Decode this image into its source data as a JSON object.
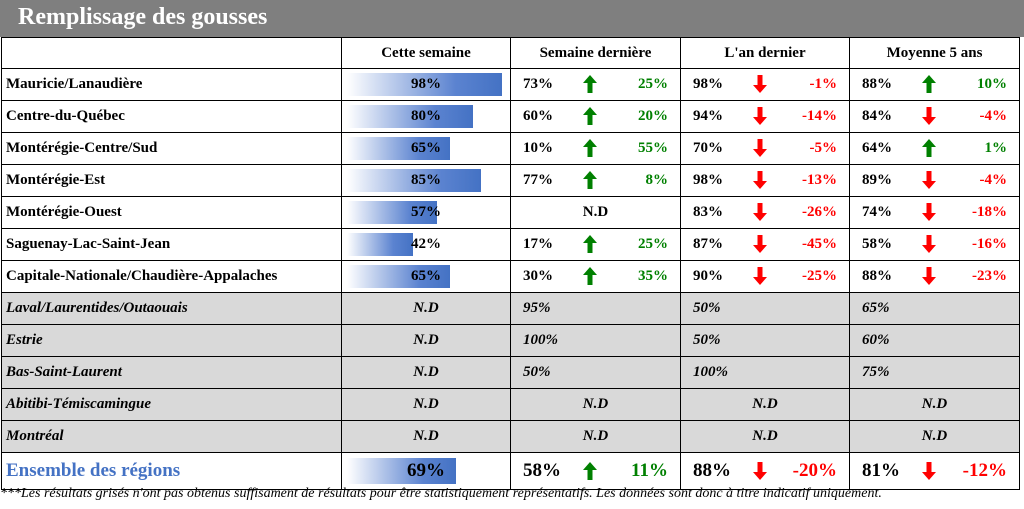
{
  "title": "Remplissage des gousses",
  "headers": [
    "",
    "Cette semaine",
    "Semaine dernière",
    "L'an dernier",
    "Moyenne 5 ans"
  ],
  "colors": {
    "up": "#008000",
    "down": "#ff0000",
    "bar": "#4472c4",
    "grey_row": "#d9d9d9",
    "title_bg": "#7f7f7f",
    "total_label": "#4472c4"
  },
  "rows": [
    {
      "region": "Mauricie/Lanaudière",
      "this_week": "98%",
      "this_week_value": 98,
      "last_week": {
        "value": "73%",
        "dir": "up",
        "diff": "25%"
      },
      "last_year": {
        "value": "98%",
        "dir": "down",
        "diff": "-1%"
      },
      "avg5": {
        "value": "88%",
        "dir": "up",
        "diff": "10%"
      }
    },
    {
      "region": "Centre-du-Québec",
      "this_week": "80%",
      "this_week_value": 80,
      "last_week": {
        "value": "60%",
        "dir": "up",
        "diff": "20%"
      },
      "last_year": {
        "value": "94%",
        "dir": "down",
        "diff": "-14%"
      },
      "avg5": {
        "value": "84%",
        "dir": "down",
        "diff": "-4%"
      }
    },
    {
      "region": "Montérégie-Centre/Sud",
      "this_week": "65%",
      "this_week_value": 65,
      "last_week": {
        "value": "10%",
        "dir": "up",
        "diff": "55%"
      },
      "last_year": {
        "value": "70%",
        "dir": "down",
        "diff": "-5%"
      },
      "avg5": {
        "value": "64%",
        "dir": "up",
        "diff": "1%"
      }
    },
    {
      "region": "Montérégie-Est",
      "this_week": "85%",
      "this_week_value": 85,
      "last_week": {
        "value": "77%",
        "dir": "up",
        "diff": "8%"
      },
      "last_year": {
        "value": "98%",
        "dir": "down",
        "diff": "-13%"
      },
      "avg5": {
        "value": "89%",
        "dir": "down",
        "diff": "-4%"
      }
    },
    {
      "region": "Montérégie-Ouest",
      "this_week": "57%",
      "this_week_value": 57,
      "last_week_nd": "N.D",
      "last_year": {
        "value": "83%",
        "dir": "down",
        "diff": "-26%"
      },
      "avg5": {
        "value": "74%",
        "dir": "down",
        "diff": "-18%"
      }
    },
    {
      "region": "Saguenay-Lac-Saint-Jean",
      "this_week": "42%",
      "this_week_value": 42,
      "last_week": {
        "value": "17%",
        "dir": "up",
        "diff": "25%"
      },
      "last_year": {
        "value": "87%",
        "dir": "down",
        "diff": "-45%"
      },
      "avg5": {
        "value": "58%",
        "dir": "down",
        "diff": "-16%"
      }
    },
    {
      "region": "Capitale-Nationale/Chaudière-Appalaches",
      "this_week": "65%",
      "this_week_value": 65,
      "last_week": {
        "value": "30%",
        "dir": "up",
        "diff": "35%"
      },
      "last_year": {
        "value": "90%",
        "dir": "down",
        "diff": "-25%"
      },
      "avg5": {
        "value": "88%",
        "dir": "down",
        "diff": "-23%"
      }
    }
  ],
  "grey_rows": [
    {
      "region": "Laval/Laurentides/Outaouais",
      "this_week": "N.D",
      "last_week": "95%",
      "last_year": "50%",
      "avg5": "65%"
    },
    {
      "region": "Estrie",
      "this_week": "N.D",
      "last_week": "100%",
      "last_year": "50%",
      "avg5": "60%"
    },
    {
      "region": "Bas-Saint-Laurent",
      "this_week": "N.D",
      "last_week": "50%",
      "last_year": "100%",
      "avg5": "75%"
    },
    {
      "region": "Abitibi-Témiscamingue",
      "this_week": "N.D",
      "last_week": "N.D",
      "last_year": "N.D",
      "avg5": "N.D"
    },
    {
      "region": "Montréal",
      "this_week": "N.D",
      "last_week": "N.D",
      "last_year": "N.D",
      "avg5": "N.D"
    }
  ],
  "total": {
    "region": "Ensemble des régions",
    "this_week": "69%",
    "this_week_value": 69,
    "last_week": {
      "value": "58%",
      "dir": "up",
      "diff": "11%"
    },
    "last_year": {
      "value": "88%",
      "dir": "down",
      "diff": "-20%"
    },
    "avg5": {
      "value": "81%",
      "dir": "down",
      "diff": "-12%"
    }
  },
  "footnote": "***Les résultats grisés n'ont pas obtenus suffisament de résultats pour être statistiquement représentatifs. Les données sont donc à titre indicatif uniquement."
}
